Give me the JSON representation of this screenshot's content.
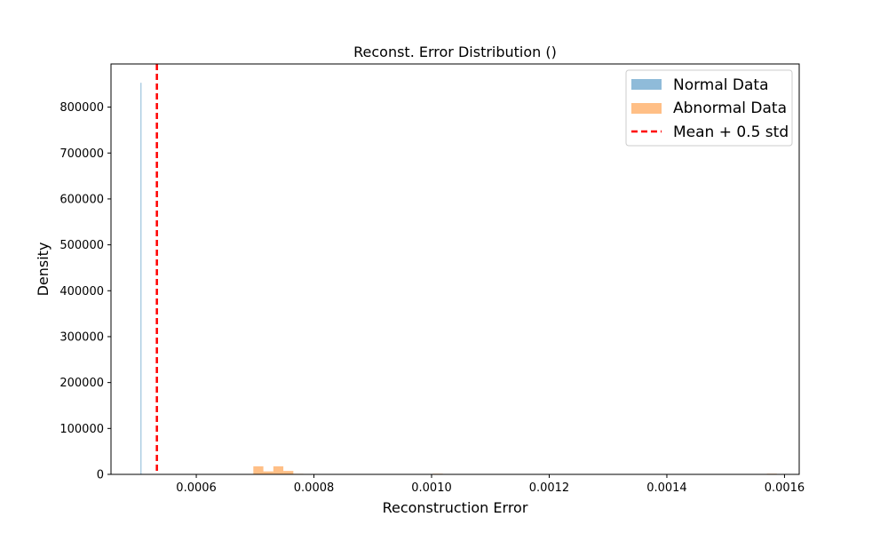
{
  "chart_data": {
    "type": "histogram",
    "title": "Reconst. Error Distribution ()",
    "xlabel": "Reconstruction Error",
    "ylabel": "Density",
    "xlim": [
      0.000455,
      0.001625
    ],
    "ylim": [
      0,
      894000
    ],
    "xticks": [
      {
        "value": 0.0006,
        "label": "0.0006"
      },
      {
        "value": 0.0008,
        "label": "0.0008"
      },
      {
        "value": 0.001,
        "label": "0.0010"
      },
      {
        "value": 0.0012,
        "label": "0.0012"
      },
      {
        "value": 0.0014,
        "label": "0.0014"
      },
      {
        "value": 0.0016,
        "label": "0.0016"
      }
    ],
    "yticks": [
      {
        "value": 0,
        "label": "0"
      },
      {
        "value": 100000,
        "label": "100000"
      },
      {
        "value": 200000,
        "label": "200000"
      },
      {
        "value": 300000,
        "label": "300000"
      },
      {
        "value": 400000,
        "label": "400000"
      },
      {
        "value": 500000,
        "label": "500000"
      },
      {
        "value": 600000,
        "label": "600000"
      },
      {
        "value": 700000,
        "label": "700000"
      },
      {
        "value": 800000,
        "label": "800000"
      }
    ],
    "grid": false,
    "legend_position": "top-right",
    "series": [
      {
        "name": "Normal Data",
        "kind": "histogram",
        "color": "#1f77b4",
        "opacity": 0.5,
        "bins": [
          {
            "x0": 0.0005052,
            "x1": 0.0005068,
            "density": 853000
          }
        ]
      },
      {
        "name": "Abnormal Data",
        "kind": "histogram",
        "color": "#ff7f0e",
        "opacity": 0.5,
        "bins": [
          {
            "x0": 0.000697,
            "x1": 0.000714,
            "density": 17500
          },
          {
            "x0": 0.000714,
            "x1": 0.000731,
            "density": 6500
          },
          {
            "x0": 0.000731,
            "x1": 0.000748,
            "density": 17500
          },
          {
            "x0": 0.000748,
            "x1": 0.000765,
            "density": 7500
          },
          {
            "x0": 0.000765,
            "x1": 0.000782,
            "density": 1200
          },
          {
            "x0": 0.001002,
            "x1": 0.001019,
            "density": 1400
          },
          {
            "x0": 0.00157,
            "x1": 0.001587,
            "density": 1400
          }
        ]
      },
      {
        "name": "Mean + 0.5 std",
        "kind": "vline",
        "color": "#ff0000",
        "x": 0.000533
      }
    ]
  }
}
